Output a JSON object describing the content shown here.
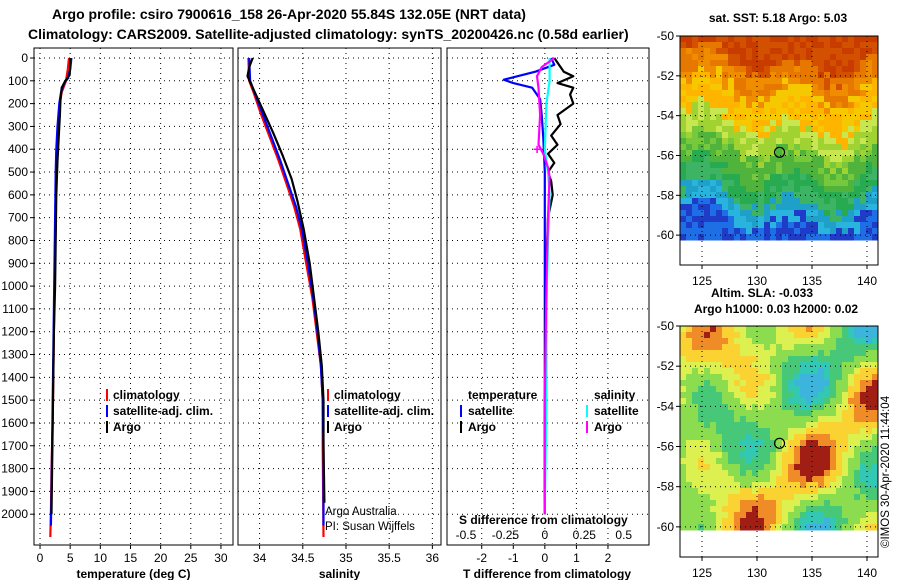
{
  "header": {
    "line1": "Argo profile: csiro 7900616_158 26-Apr-2020 55.84S 132.05E (NRT data)",
    "line2": "Climatology: CARS2009. Satellite-adjusted climatology: synTS_20200426.nc (0.58d earlier)"
  },
  "colors": {
    "climatology": "#ff0000",
    "satellite_adj": "#0000ff",
    "argo": "#000000",
    "sal_satellite": "#00ffff",
    "sal_argo": "#ff00ff"
  },
  "chart_data": [
    {
      "id": "temperature",
      "type": "line",
      "xlabel": "temperature (deg C)",
      "xlim": [
        -1,
        32
      ],
      "ylim": [
        2100,
        0
      ],
      "xticks": [
        0,
        5,
        10,
        15,
        20,
        25,
        30
      ],
      "yticks": [
        0,
        100,
        200,
        300,
        400,
        500,
        600,
        700,
        800,
        900,
        1000,
        1100,
        1200,
        1300,
        1400,
        1500,
        1600,
        1700,
        1800,
        1900,
        2000
      ],
      "legend": [
        "climatology",
        "satellite-adj. clim.",
        "Argo"
      ],
      "series": [
        {
          "name": "climatology",
          "color": "#ff0000",
          "points": [
            [
              4.8,
              0
            ],
            [
              4.6,
              50
            ],
            [
              4.3,
              100
            ],
            [
              3.6,
              150
            ],
            [
              3.3,
              200
            ],
            [
              3.0,
              300
            ],
            [
              2.8,
              400
            ],
            [
              2.7,
              500
            ],
            [
              2.6,
              600
            ],
            [
              2.5,
              800
            ],
            [
              2.4,
              1000
            ],
            [
              2.3,
              1200
            ],
            [
              2.2,
              1400
            ],
            [
              2.1,
              1600
            ],
            [
              1.9,
              1800
            ],
            [
              1.8,
              2000
            ],
            [
              1.7,
              2100
            ]
          ]
        },
        {
          "name": "satellite-adj. clim.",
          "color": "#0000ff",
          "points": [
            [
              5.2,
              0
            ],
            [
              5.0,
              50
            ],
            [
              4.6,
              90
            ],
            [
              4.0,
              110
            ],
            [
              3.5,
              150
            ],
            [
              3.2,
              200
            ],
            [
              2.9,
              300
            ],
            [
              2.7,
              400
            ],
            [
              2.6,
              500
            ],
            [
              2.5,
              700
            ],
            [
              2.4,
              900
            ],
            [
              2.3,
              1100
            ],
            [
              2.2,
              1300
            ],
            [
              2.1,
              1500
            ],
            [
              2.0,
              1700
            ],
            [
              1.9,
              1900
            ],
            [
              1.8,
              2050
            ]
          ]
        },
        {
          "name": "Argo",
          "color": "#000000",
          "points": [
            [
              5.0,
              0
            ],
            [
              5.0,
              40
            ],
            [
              4.9,
              75
            ],
            [
              4.2,
              100
            ],
            [
              3.6,
              130
            ],
            [
              3.4,
              180
            ],
            [
              3.3,
              250
            ],
            [
              3.1,
              350
            ],
            [
              2.9,
              450
            ],
            [
              2.7,
              600
            ],
            [
              2.6,
              800
            ],
            [
              2.5,
              1000
            ],
            [
              2.3,
              1200
            ],
            [
              2.2,
              1400
            ],
            [
              2.1,
              1600
            ],
            [
              2.0,
              1800
            ],
            [
              1.9,
              2000
            ]
          ]
        }
      ]
    },
    {
      "id": "salinity",
      "type": "line",
      "xlabel": "salinity",
      "xlim": [
        33.75,
        36.1
      ],
      "ylim": [
        2100,
        0
      ],
      "xticks": [
        34,
        34.5,
        35,
        35.5,
        36
      ],
      "ytick_labels_shown": false,
      "legend": [
        "climatology",
        "satellite-adj. clim.",
        "Argo"
      ],
      "annotations": [
        "Argo Australia",
        "PI: Susan Wijffels"
      ],
      "series": [
        {
          "name": "climatology",
          "color": "#ff0000",
          "points": [
            [
              33.87,
              0
            ],
            [
              33.88,
              100
            ],
            [
              33.93,
              150
            ],
            [
              34.02,
              250
            ],
            [
              34.12,
              350
            ],
            [
              34.22,
              450
            ],
            [
              34.31,
              550
            ],
            [
              34.4,
              650
            ],
            [
              34.47,
              750
            ],
            [
              34.54,
              900
            ],
            [
              34.61,
              1050
            ],
            [
              34.66,
              1200
            ],
            [
              34.71,
              1350
            ],
            [
              34.73,
              1500
            ],
            [
              34.73,
              1700
            ],
            [
              34.74,
              2100
            ]
          ]
        },
        {
          "name": "satellite-adj. clim.",
          "color": "#0000ff",
          "points": [
            [
              33.88,
              0
            ],
            [
              33.89,
              100
            ],
            [
              33.94,
              150
            ],
            [
              34.04,
              250
            ],
            [
              34.14,
              350
            ],
            [
              34.24,
              450
            ],
            [
              34.33,
              550
            ],
            [
              34.42,
              650
            ],
            [
              34.49,
              750
            ],
            [
              34.56,
              900
            ],
            [
              34.62,
              1050
            ],
            [
              34.67,
              1200
            ],
            [
              34.71,
              1350
            ],
            [
              34.73,
              1500
            ],
            [
              34.74,
              1700
            ],
            [
              34.74,
              2050
            ]
          ]
        },
        {
          "name": "Argo",
          "color": "#000000",
          "points": [
            [
              33.92,
              0
            ],
            [
              33.88,
              40
            ],
            [
              33.86,
              80
            ],
            [
              33.92,
              130
            ],
            [
              34.04,
              230
            ],
            [
              34.16,
              330
            ],
            [
              34.27,
              430
            ],
            [
              34.37,
              530
            ],
            [
              34.44,
              630
            ],
            [
              34.51,
              750
            ],
            [
              34.58,
              900
            ],
            [
              34.63,
              1050
            ],
            [
              34.68,
              1200
            ],
            [
              34.72,
              1350
            ],
            [
              34.74,
              1500
            ],
            [
              34.74,
              1700
            ],
            [
              34.75,
              1950
            ]
          ]
        }
      ]
    },
    {
      "id": "difference",
      "type": "line",
      "xlabel": "T difference from climatology",
      "xlim": [
        -3.1,
        3.3
      ],
      "ylim": [
        2100,
        0
      ],
      "xticks": [
        -2,
        -1,
        0,
        1,
        2
      ],
      "s_axis_title": "S difference from climatology",
      "s_ticks": [
        -0.5,
        -0.25,
        0,
        0.25,
        0.5
      ],
      "legend_temperature_title": "temperature",
      "legend_salinity_title": "salinity",
      "legend_temperature": [
        "satellite",
        "Argo"
      ],
      "legend_salinity": [
        "satellite",
        "Argo"
      ],
      "series": [
        {
          "name": "T satellite",
          "color": "#0000ff",
          "points": [
            [
              0.2,
              0
            ],
            [
              0.3,
              30
            ],
            [
              -0.3,
              60
            ],
            [
              -1.3,
              95
            ],
            [
              -1.0,
              110
            ],
            [
              -0.4,
              130
            ],
            [
              -0.15,
              180
            ],
            [
              -0.1,
              250
            ],
            [
              -0.05,
              350
            ],
            [
              0,
              500
            ],
            [
              0,
              700
            ],
            [
              0,
              1000
            ],
            [
              0,
              1500
            ],
            [
              0,
              2000
            ]
          ]
        },
        {
          "name": "T Argo",
          "color": "#000000",
          "points": [
            [
              0.3,
              0
            ],
            [
              0.6,
              60
            ],
            [
              0.9,
              80
            ],
            [
              0.4,
              110
            ],
            [
              0.9,
              130
            ],
            [
              0.8,
              160
            ],
            [
              0.9,
              200
            ],
            [
              0.4,
              250
            ],
            [
              0.5,
              290
            ],
            [
              0.2,
              340
            ],
            [
              0.4,
              380
            ],
            [
              0.1,
              420
            ],
            [
              0.3,
              460
            ],
            [
              0.1,
              500
            ],
            [
              0.2,
              540
            ],
            [
              0.25,
              600
            ],
            [
              0.1,
              700
            ],
            [
              0.05,
              900
            ],
            [
              0.02,
              1200
            ],
            [
              0,
              1600
            ],
            [
              0,
              2000
            ]
          ]
        },
        {
          "name": "S satellite",
          "color": "#00ffff",
          "points": [
            [
              0.03,
              0
            ],
            [
              0.03,
              100
            ],
            [
              0.01,
              200
            ],
            [
              0.0,
              400
            ],
            [
              0.02,
              500
            ],
            [
              0.03,
              600
            ],
            [
              0.02,
              800
            ],
            [
              0.01,
              1100
            ],
            [
              0.01,
              1500
            ],
            [
              0.0,
              2000
            ]
          ]
        },
        {
          "name": "S Argo",
          "color": "#ff00ff",
          "points": [
            [
              0.06,
              0
            ],
            [
              -0.02,
              40
            ],
            [
              -0.05,
              80
            ],
            [
              -0.04,
              130
            ],
            [
              -0.03,
              250
            ],
            [
              -0.04,
              380
            ],
            [
              -0.01,
              420
            ],
            [
              0.02,
              480
            ],
            [
              0.03,
              520
            ],
            [
              0.02,
              700
            ],
            [
              0.01,
              1000
            ],
            [
              0.0,
              1500
            ],
            [
              0.0,
              2000
            ]
          ]
        }
      ]
    },
    {
      "id": "sst_map",
      "type": "heatmap",
      "title": "sat. SST: 5.18 Argo: 5.03",
      "xticks": [
        125,
        130,
        135,
        140
      ],
      "yticks": [
        -50,
        -52,
        -54,
        -56,
        -58,
        -60
      ],
      "xlim": [
        123,
        141
      ],
      "ylim": [
        -60,
        -50
      ],
      "lon_extent": [
        123,
        141
      ],
      "lat_extent": [
        -61.5,
        -50
      ],
      "marker": {
        "lon": 132.05,
        "lat": -55.84
      }
    },
    {
      "id": "sla_map",
      "type": "heatmap",
      "title": "Altim. SLA: -0.033",
      "subtitle": "Argo h1000: 0.03 h2000: 0.02",
      "xticks": [
        125,
        130,
        135,
        140
      ],
      "yticks": [
        -50,
        -52,
        -54,
        -56,
        -58,
        -60
      ],
      "xlim": [
        123,
        141
      ],
      "ylim": [
        -60,
        -50
      ],
      "lon_extent": [
        123,
        141
      ],
      "lat_extent": [
        -61.5,
        -50
      ],
      "marker": {
        "lon": 132.05,
        "lat": -55.84
      }
    }
  ],
  "footer": {
    "watermark": "©IMOS 30-Apr-2020 11:44:04"
  }
}
